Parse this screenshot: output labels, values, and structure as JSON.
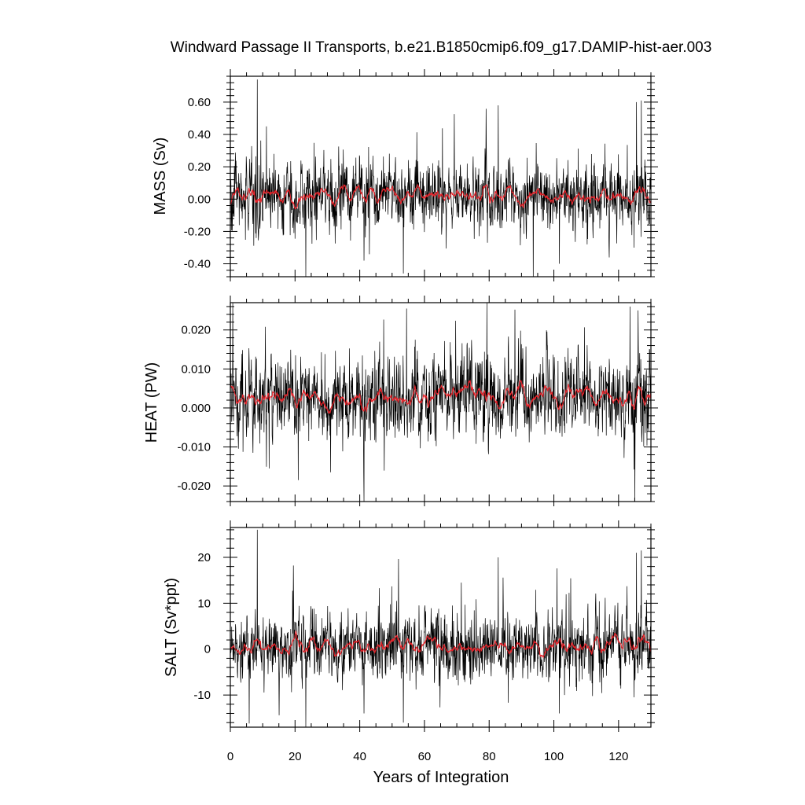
{
  "title": "Windward Passage II Transports, b.e21.B1850cmip6.f09_g17.DAMIP-hist-aer.003",
  "xlabel": "Years of Integration",
  "chart_data": [
    {
      "type": "line",
      "ylabel": "MASS (Sv)",
      "xlim": [
        0,
        130
      ],
      "ylim": [
        -0.48,
        0.76
      ],
      "x_ticks": [
        0,
        20,
        40,
        60,
        80,
        100,
        120
      ],
      "x_tick_labels": [
        "0",
        "20",
        "40",
        "60",
        "80",
        "100",
        "120"
      ],
      "y_ticks": [
        -0.4,
        -0.2,
        0.0,
        0.2,
        0.4,
        0.6
      ],
      "y_tick_labels": [
        "-0.40",
        "-0.20",
        "0.00",
        "0.20",
        "0.40",
        "0.60"
      ],
      "x_start": 0,
      "x_step": 0.0833,
      "monthly_base": 0.02,
      "monthly_spread": 0.11,
      "smoothed_mean": 0.02,
      "smoothed_amplitude": 0.05,
      "spikes": [
        {
          "x": 8.3,
          "y": 0.74
        },
        {
          "x": 11.2,
          "y": 0.45
        },
        {
          "x": 23.3,
          "y": -0.48
        },
        {
          "x": 41.3,
          "y": -0.38
        },
        {
          "x": 53.5,
          "y": -0.46
        },
        {
          "x": 82.8,
          "y": 0.58
        },
        {
          "x": 101.7,
          "y": -0.4
        },
        {
          "x": 125.5,
          "y": 0.6
        },
        {
          "x": 127.0,
          "y": 0.61
        },
        {
          "x": 124.8,
          "y": -0.3
        }
      ],
      "line_colors": {
        "monthly": "#000000",
        "smoothed": "#e8242b"
      }
    },
    {
      "type": "line",
      "ylabel": "HEAT (PW)",
      "xlim": [
        0,
        130
      ],
      "ylim": [
        -0.024,
        0.027
      ],
      "x_ticks": [
        0,
        20,
        40,
        60,
        80,
        100,
        120
      ],
      "x_tick_labels": [
        "0",
        "20",
        "40",
        "60",
        "80",
        "100",
        "120"
      ],
      "y_ticks": [
        -0.02,
        -0.01,
        0.0,
        0.01,
        0.02
      ],
      "y_tick_labels": [
        "-0.020",
        "-0.010",
        "0.000",
        "0.010",
        "0.020"
      ],
      "x_start": 0,
      "x_step": 0.0833,
      "monthly_base": 0.003,
      "monthly_spread": 0.0055,
      "smoothed_mean": 0.003,
      "smoothed_amplitude": 0.002,
      "spikes": [
        {
          "x": 41.3,
          "y": -0.024
        },
        {
          "x": 54.5,
          "y": 0.0255
        },
        {
          "x": 79.3,
          "y": 0.027
        },
        {
          "x": 21.0,
          "y": -0.0185
        },
        {
          "x": 12.0,
          "y": -0.0155
        },
        {
          "x": 123.5,
          "y": 0.026
        },
        {
          "x": 126.0,
          "y": 0.025
        },
        {
          "x": 31.0,
          "y": -0.0165
        }
      ],
      "line_colors": {
        "monthly": "#000000",
        "smoothed": "#e8242b"
      }
    },
    {
      "type": "line",
      "ylabel": "SALT (Sv*ppt)",
      "xlim": [
        0,
        130
      ],
      "ylim": [
        -17,
        26.5
      ],
      "x_ticks": [
        0,
        20,
        40,
        60,
        80,
        100,
        120
      ],
      "x_tick_labels": [
        "0",
        "20",
        "40",
        "60",
        "80",
        "100",
        "120"
      ],
      "y_ticks": [
        -10,
        0,
        10,
        20
      ],
      "y_tick_labels": [
        "-10",
        "0",
        "10",
        "20"
      ],
      "x_start": 0,
      "x_step": 0.0833,
      "monthly_base": 0.8,
      "monthly_spread": 3.8,
      "smoothed_mean": 0.8,
      "smoothed_amplitude": 1.6,
      "spikes": [
        {
          "x": 8.3,
          "y": 26
        },
        {
          "x": 23.3,
          "y": -17
        },
        {
          "x": 53.5,
          "y": -16
        },
        {
          "x": 82.8,
          "y": 20
        },
        {
          "x": 101.7,
          "y": -14
        },
        {
          "x": 125.5,
          "y": 21
        },
        {
          "x": 127.0,
          "y": 21.5
        },
        {
          "x": 124.8,
          "y": -10.5
        },
        {
          "x": 41.3,
          "y": -14
        }
      ],
      "line_colors": {
        "monthly": "#000000",
        "smoothed": "#e8242b"
      }
    }
  ]
}
